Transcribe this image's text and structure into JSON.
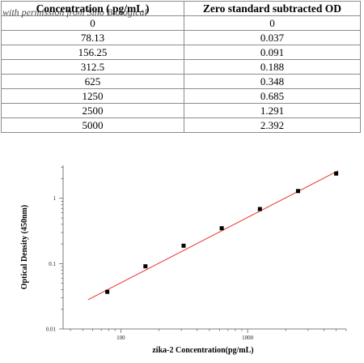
{
  "table": {
    "headers": [
      "Concentration ( pg/mL )",
      "Zero standard subtracted OD"
    ],
    "rows": [
      [
        "0",
        "0"
      ],
      [
        "78.13",
        "0.037"
      ],
      [
        "156.25",
        "0.091"
      ],
      [
        "312.5",
        "0.188"
      ],
      [
        "625",
        "0.348"
      ],
      [
        "1250",
        "0.685"
      ],
      [
        "2500",
        "1.291"
      ],
      [
        "5000",
        "2.392"
      ]
    ]
  },
  "watermark": "with permission from Sino Biological",
  "chart_data": {
    "type": "scatter",
    "xlabel": "zika-2  Concentration(pg/mL)",
    "ylabel": "Optical Density (450nm)",
    "xscale": "log",
    "yscale": "log",
    "xlim": [
      35,
      6000
    ],
    "ylim": [
      0.01,
      3.2
    ],
    "xticks": [
      100,
      1000
    ],
    "xtick_labels": [
      "100",
      "1000"
    ],
    "yticks": [
      0.01,
      0.1,
      1
    ],
    "ytick_labels": [
      "0.01",
      "0.1",
      "1"
    ],
    "grid": false,
    "series": [
      {
        "values_x": [
          78.13,
          156.25,
          312.5,
          625,
          1250,
          2500,
          5000
        ],
        "values_y": [
          0.037,
          0.091,
          0.188,
          0.348,
          0.685,
          1.291,
          2.392
        ],
        "color": "#000000"
      }
    ],
    "fit_line": {
      "x": [
        55,
        5200
      ],
      "y": [
        0.028,
        2.65
      ],
      "color": "#e8322c"
    }
  }
}
